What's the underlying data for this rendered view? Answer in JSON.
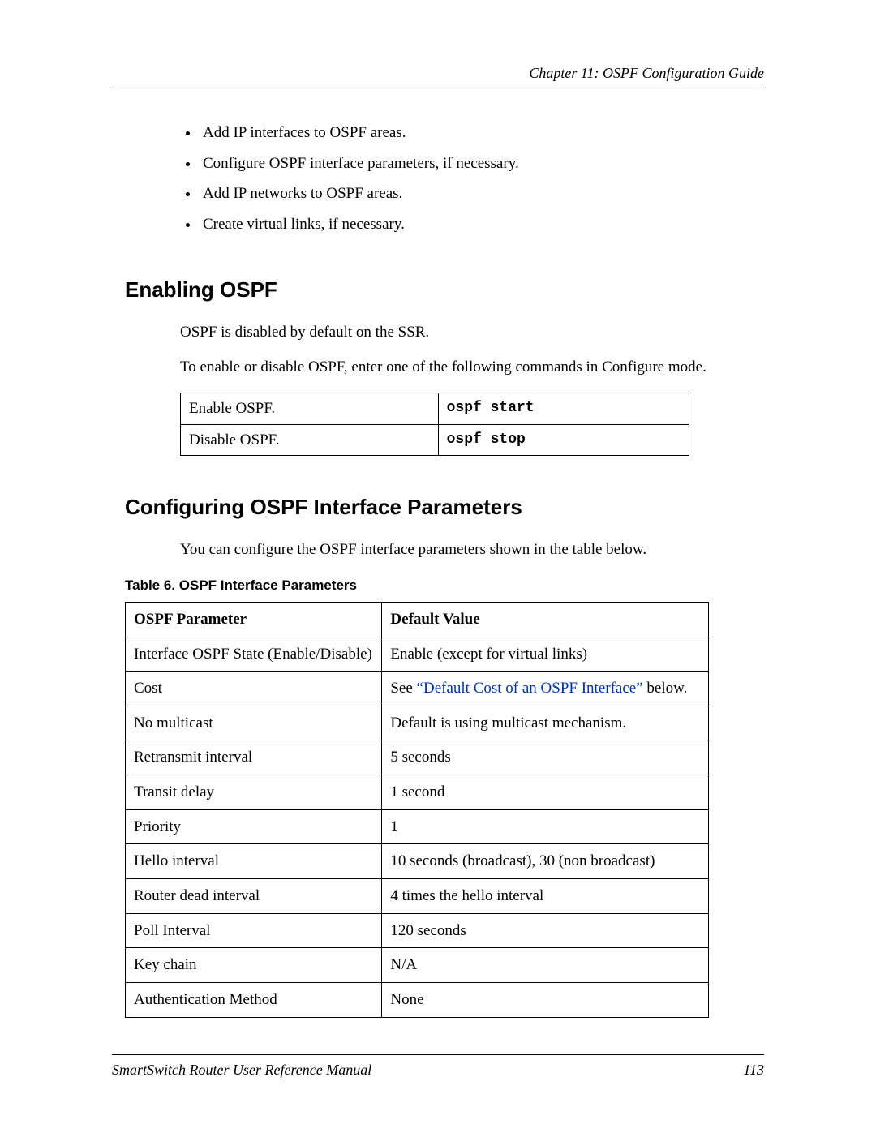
{
  "header": {
    "chapter": "Chapter 11: OSPF Configuration Guide"
  },
  "bullets": [
    "Add IP interfaces to OSPF areas.",
    "Configure OSPF interface parameters, if necessary.",
    "Add IP networks to OSPF areas.",
    "Create virtual links, if necessary."
  ],
  "section_enable": {
    "title": "Enabling OSPF",
    "p1": "OSPF is disabled by default on the SSR.",
    "p2": "To enable or disable OSPF, enter one of the following commands in Configure mode."
  },
  "cmd_table": {
    "columns": [
      "description",
      "command"
    ],
    "rows": [
      {
        "desc": "Enable OSPF.",
        "cmd": "ospf start"
      },
      {
        "desc": "Disable OSPF.",
        "cmd": "ospf stop"
      }
    ]
  },
  "section_params": {
    "title": "Configuring OSPF Interface Parameters",
    "p1": "You can configure the OSPF interface parameters shown in the table below.",
    "caption": "Table 6.  OSPF Interface Parameters"
  },
  "param_table": {
    "headers": [
      "OSPF Parameter",
      "Default Value"
    ],
    "link_text": "“Default Cost of an OSPF Interface”",
    "link_color": "#0033aa",
    "rows": [
      {
        "param": "Interface OSPF State (Enable/Disable)",
        "value": "Enable (except for virtual links)"
      },
      {
        "param": "Cost",
        "value_prefix": "See ",
        "value_suffix": " below.",
        "has_link": true
      },
      {
        "param": "No multicast",
        "value": "Default is using multicast mechanism."
      },
      {
        "param": "Retransmit interval",
        "value": "5 seconds"
      },
      {
        "param": "Transit delay",
        "value": "1 second"
      },
      {
        "param": "Priority",
        "value": "1"
      },
      {
        "param": "Hello interval",
        "value": "10 seconds (broadcast), 30 (non broadcast)"
      },
      {
        "param": "Router dead interval",
        "value": "4 times the hello interval"
      },
      {
        "param": "Poll Interval",
        "value": "120 seconds"
      },
      {
        "param": "Key chain",
        "value": "N/A"
      },
      {
        "param": "Authentication Method",
        "value": "None"
      }
    ]
  },
  "footer": {
    "manual": "SmartSwitch Router User Reference Manual",
    "page": "113"
  }
}
